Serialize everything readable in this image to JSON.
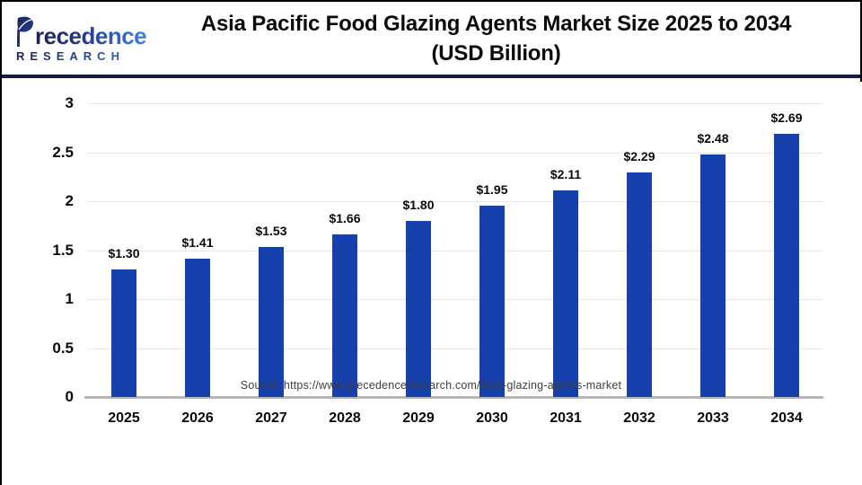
{
  "header": {
    "logo": {
      "line1": "recedence",
      "line2": "RESEARCH"
    },
    "title_line1": "Asia Pacific Food Glazing Agents Market Size 2025 to 2034",
    "title_line2": "(USD Billion)"
  },
  "chart_data": {
    "type": "bar",
    "title": "Asia Pacific Food Glazing Agents Market Size 2025 to 2034 (USD Billion)",
    "categories": [
      "2025",
      "2026",
      "2027",
      "2028",
      "2029",
      "2030",
      "2031",
      "2032",
      "2033",
      "2034"
    ],
    "values": [
      1.3,
      1.41,
      1.53,
      1.66,
      1.8,
      1.95,
      2.11,
      2.29,
      2.48,
      2.69
    ],
    "bar_labels": [
      "$1.30",
      "$1.41",
      "$1.53",
      "$1.66",
      "$1.80",
      "$1.95",
      "$2.11",
      "$2.29",
      "$2.48",
      "$2.69"
    ],
    "xlabel": "",
    "ylabel": "",
    "ylim": [
      0,
      3
    ],
    "yticks": [
      0,
      0.5,
      1,
      1.5,
      2,
      2.5,
      3
    ],
    "ytick_labels": [
      "0",
      "0.5",
      "1",
      "1.5",
      "2",
      "2.5",
      "3"
    ],
    "grid": true,
    "legend": "none",
    "bar_color": "#1640ab"
  },
  "footer": {
    "source": "Source: https://www.precedenceresearch.com/food-glazing-agents-market"
  },
  "colors": {
    "bar": "#1640ab",
    "header_rule": "#131c47",
    "gridline": "#e7e7e7",
    "baseline": "#b5b5b5",
    "logo_navy": "#1b2553",
    "logo_blue": "#3d7fe0"
  }
}
